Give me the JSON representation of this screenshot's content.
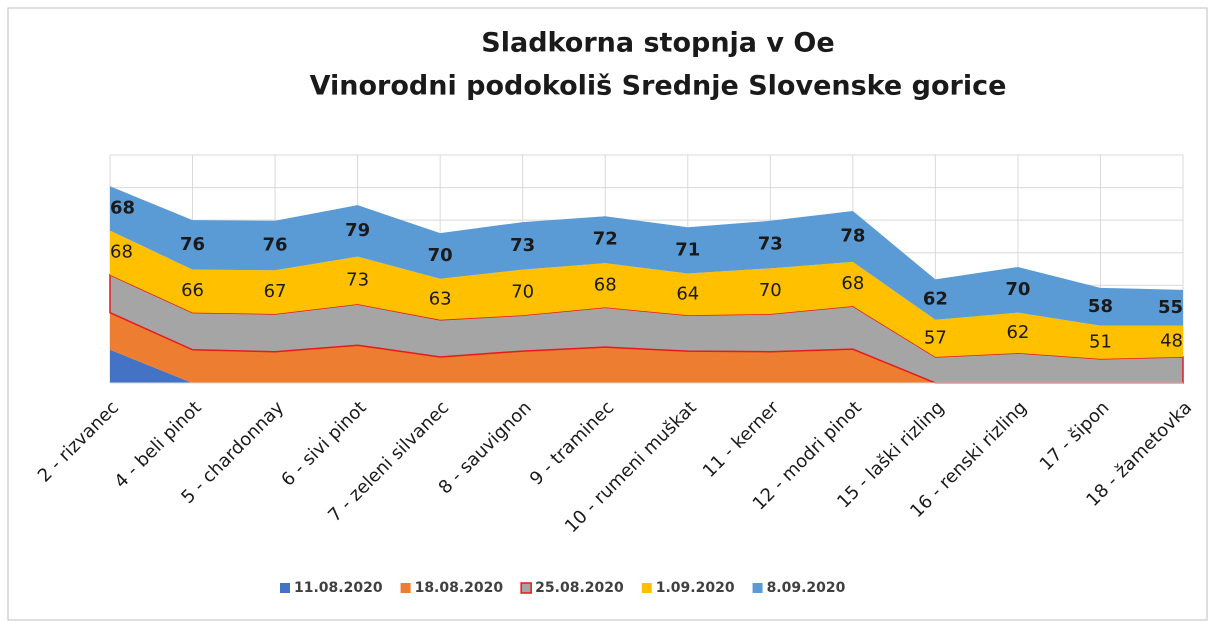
{
  "chart_data": {
    "type": "stacked_area",
    "title": "Sladkorna stopnja v Oe",
    "subtitle": "Vinorodni podokoliš Srednje Slovenske gorice",
    "categories": [
      "2 - rizvanec",
      "4 - beli pinot",
      "5 - chardonnay",
      "6 - sivi pinot",
      "7 - zeleni silvanec",
      "8 - sauvignon",
      "9 - traminec",
      "10 - rumeni muškat",
      "11 - kerner",
      "12 - modri pinot",
      "15 - laški rizling",
      "16 - renski rizling",
      "17 - šipon",
      "18 - žametovka"
    ],
    "series": [
      {
        "name": "11.08.2020",
        "color": "#4472c4",
        "values": [
          51,
          0,
          0,
          0,
          0,
          0,
          0,
          0,
          0,
          0,
          0,
          0,
          0,
          0
        ]
      },
      {
        "name": "18.08.2020",
        "color": "#ed7d31",
        "values": [
          57,
          51,
          48,
          58,
          40,
          49,
          55,
          49,
          48,
          52,
          0,
          0,
          0,
          0
        ]
      },
      {
        "name": "25.08.2020",
        "color": "#a5a5a5",
        "border": "#e8191b",
        "values": [
          58,
          57,
          58,
          63,
          57,
          55,
          61,
          55,
          58,
          66,
          40,
          46,
          37,
          40
        ]
      },
      {
        "name": "1.09.2020",
        "color": "#ffc000",
        "values": [
          68,
          66,
          67,
          73,
          63,
          70,
          68,
          64,
          70,
          68,
          57,
          62,
          51,
          48
        ],
        "labels": true
      },
      {
        "name": "8.09.2020",
        "color": "#5b9bd5",
        "values": [
          68,
          76,
          76,
          79,
          70,
          73,
          72,
          71,
          73,
          78,
          62,
          70,
          58,
          55
        ],
        "labels": true,
        "bold_labels": true
      }
    ],
    "ylim": [
      0,
      350
    ],
    "yticks": [
      0,
      50,
      100,
      150,
      200,
      250,
      300,
      350
    ],
    "grid": true
  }
}
